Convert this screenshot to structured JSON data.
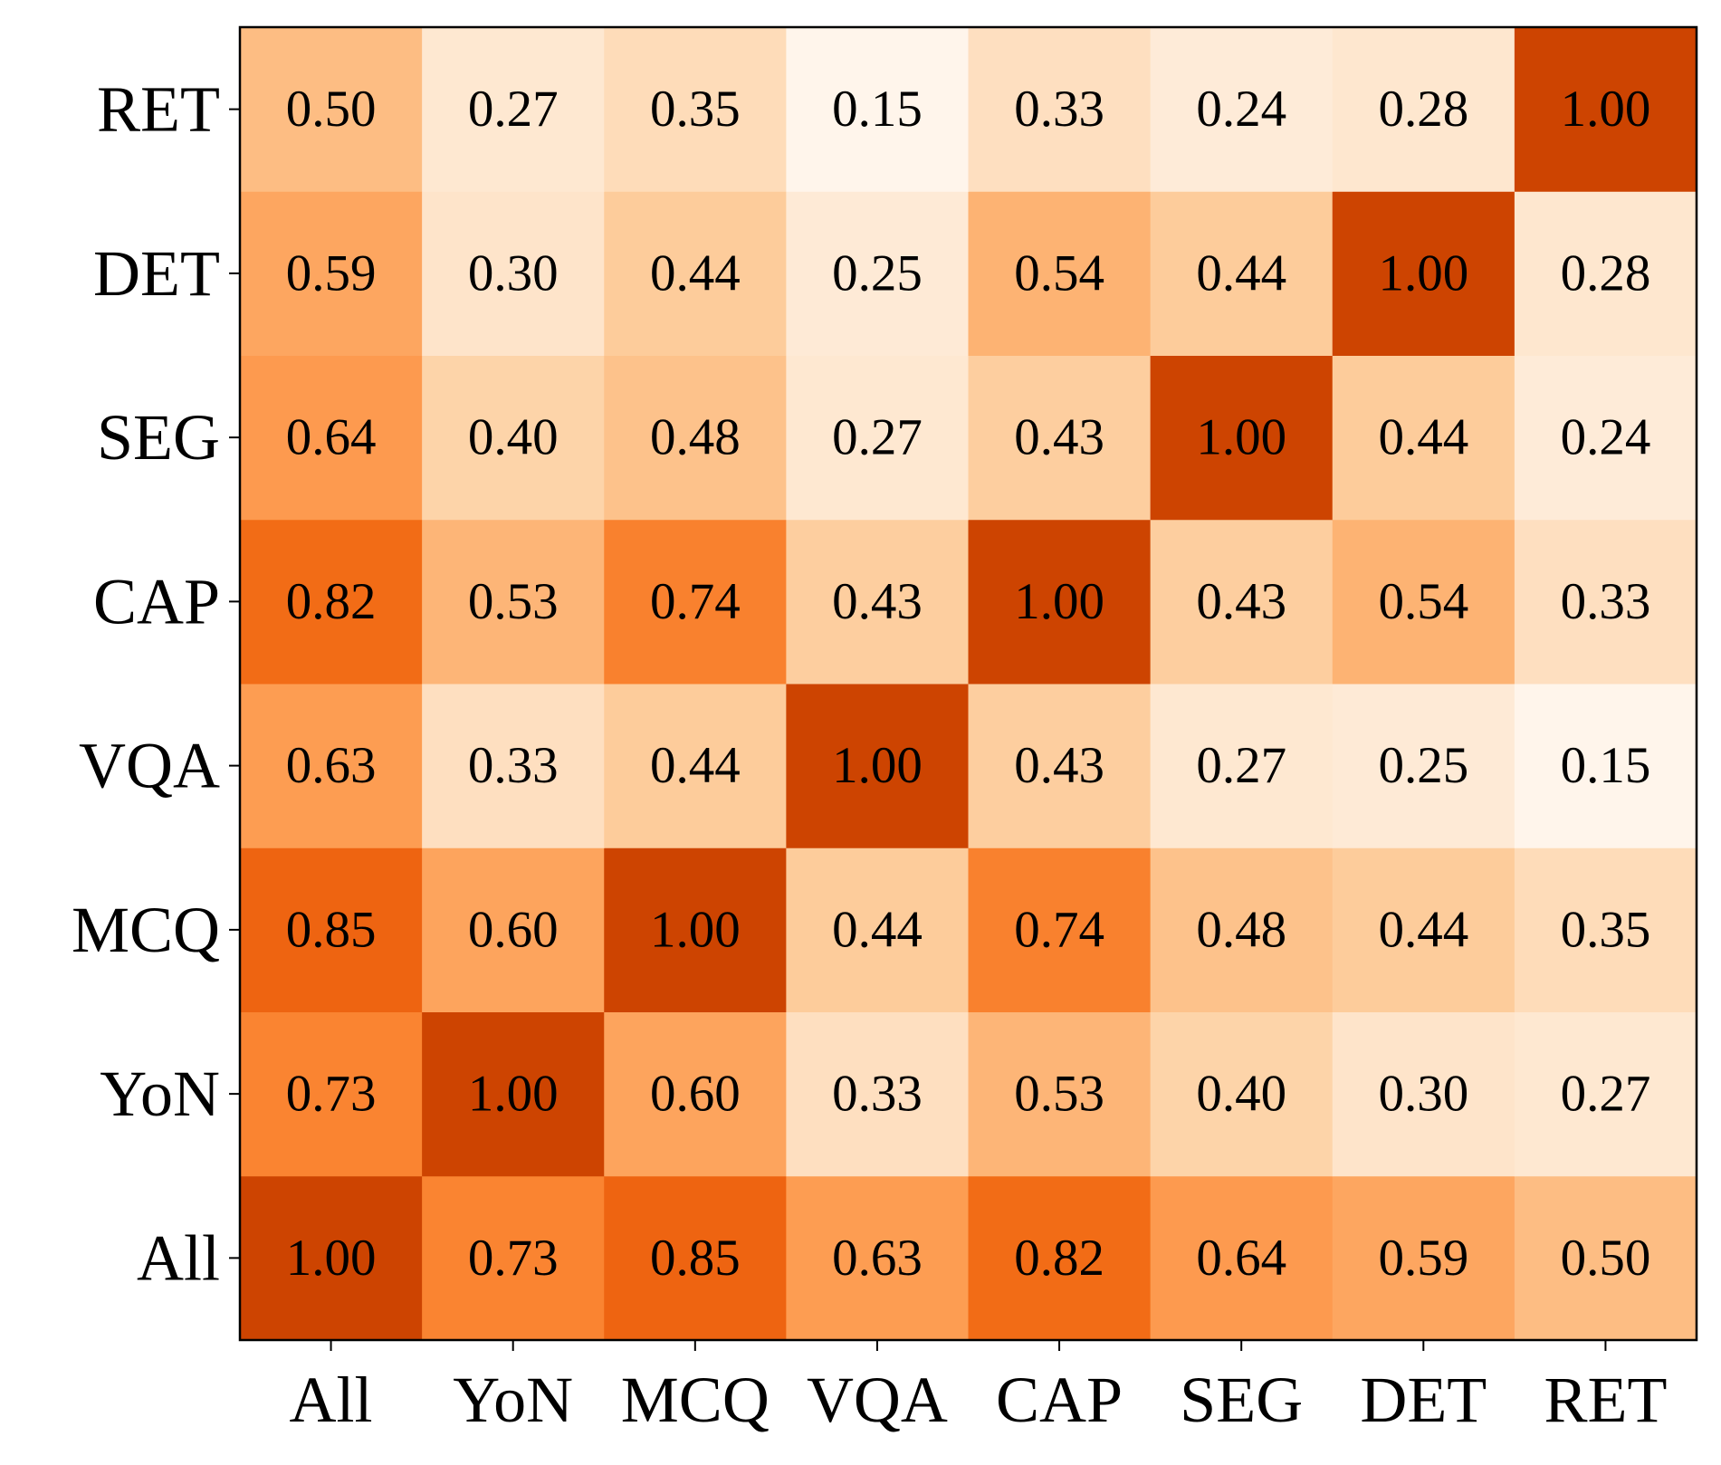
{
  "chart_data": {
    "type": "heatmap",
    "colormap": "Oranges",
    "x_categories": [
      "All",
      "YoN",
      "MCQ",
      "VQA",
      "CAP",
      "SEG",
      "DET",
      "RET"
    ],
    "y_categories": [
      "All",
      "YoN",
      "MCQ",
      "VQA",
      "CAP",
      "SEG",
      "DET",
      "RET"
    ],
    "values": [
      [
        1.0,
        0.73,
        0.85,
        0.63,
        0.82,
        0.64,
        0.59,
        0.5
      ],
      [
        0.73,
        1.0,
        0.6,
        0.33,
        0.53,
        0.4,
        0.3,
        0.27
      ],
      [
        0.85,
        0.6,
        1.0,
        0.44,
        0.74,
        0.48,
        0.44,
        0.35
      ],
      [
        0.63,
        0.33,
        0.44,
        1.0,
        0.43,
        0.27,
        0.25,
        0.15
      ],
      [
        0.82,
        0.53,
        0.74,
        0.43,
        1.0,
        0.43,
        0.54,
        0.33
      ],
      [
        0.64,
        0.4,
        0.48,
        0.27,
        0.43,
        1.0,
        0.44,
        0.24
      ],
      [
        0.59,
        0.3,
        0.44,
        0.25,
        0.54,
        0.44,
        1.0,
        0.28
      ],
      [
        0.5,
        0.27,
        0.35,
        0.15,
        0.33,
        0.24,
        0.28,
        1.0
      ]
    ],
    "value_labels": [
      [
        "1.00",
        "0.73",
        "0.85",
        "0.63",
        "0.82",
        "0.64",
        "0.59",
        "0.50"
      ],
      [
        "0.73",
        "1.00",
        "0.60",
        "0.33",
        "0.53",
        "0.40",
        "0.30",
        "0.27"
      ],
      [
        "0.85",
        "0.60",
        "1.00",
        "0.44",
        "0.74",
        "0.48",
        "0.44",
        "0.35"
      ],
      [
        "0.63",
        "0.33",
        "0.44",
        "1.00",
        "0.43",
        "0.27",
        "0.25",
        "0.15"
      ],
      [
        "0.82",
        "0.53",
        "0.74",
        "0.43",
        "1.00",
        "0.43",
        "0.54",
        "0.33"
      ],
      [
        "0.64",
        "0.40",
        "0.48",
        "0.27",
        "0.43",
        "1.00",
        "0.44",
        "0.24"
      ],
      [
        "0.59",
        "0.30",
        "0.44",
        "0.25",
        "0.54",
        "0.44",
        "1.00",
        "0.28"
      ],
      [
        "0.50",
        "0.27",
        "0.35",
        "0.15",
        "0.33",
        "0.24",
        "0.28",
        "1.00"
      ]
    ]
  }
}
